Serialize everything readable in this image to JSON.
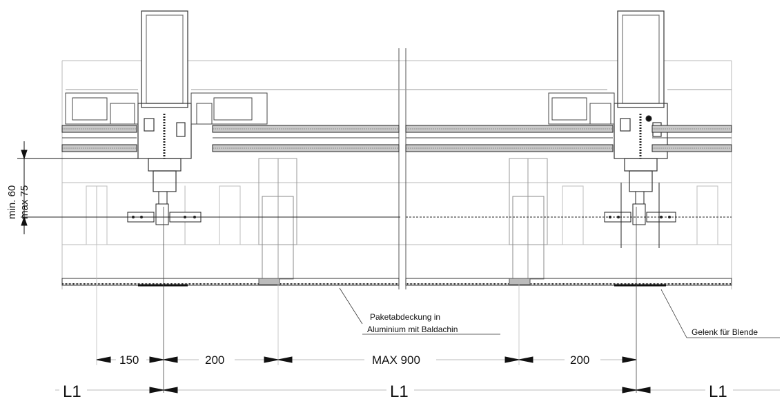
{
  "dimensions": {
    "d150": "150",
    "d200_left": "200",
    "d_max900": "MAX 900",
    "d200_right": "200"
  },
  "levels": {
    "l1_left": "L1",
    "l1_center": "L1",
    "l1_right": "L1"
  },
  "vertical_dimension": {
    "min": "min. 60",
    "max": "max 75"
  },
  "annotations": {
    "paket_line1": "Paketabdeckung in",
    "paket_line2": "Aluminium mit Baldachin",
    "gelenk": "Gelenk für Blende"
  }
}
